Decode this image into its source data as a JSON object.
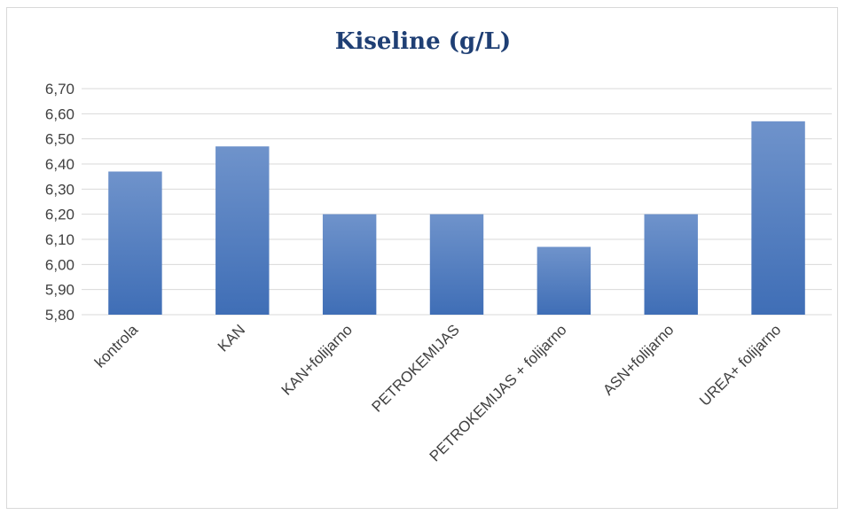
{
  "chart_data": {
    "type": "bar",
    "title": "Kiseline (g/L)",
    "xlabel": "",
    "ylabel": "",
    "categories": [
      "kontrola",
      "KAN",
      "KAN+folijarno",
      "PETROKEMIJAS",
      "PETROKEMIJAS + folijarno",
      "ASN+folijarno",
      "UREA+ folijarno"
    ],
    "values": [
      6.37,
      6.47,
      6.2,
      6.2,
      6.07,
      6.2,
      6.57
    ],
    "ylim": [
      5.8,
      6.7
    ],
    "yticks": [
      "5,80",
      "5,90",
      "6,00",
      "6,10",
      "6,20",
      "6,30",
      "6,40",
      "6,50",
      "6,60",
      "6,70"
    ],
    "grid": true,
    "legend": "none",
    "colors": {
      "bar_top": "#6f93cb",
      "bar_bottom": "#3f6eb6",
      "grid": "#d9d9d9"
    }
  }
}
